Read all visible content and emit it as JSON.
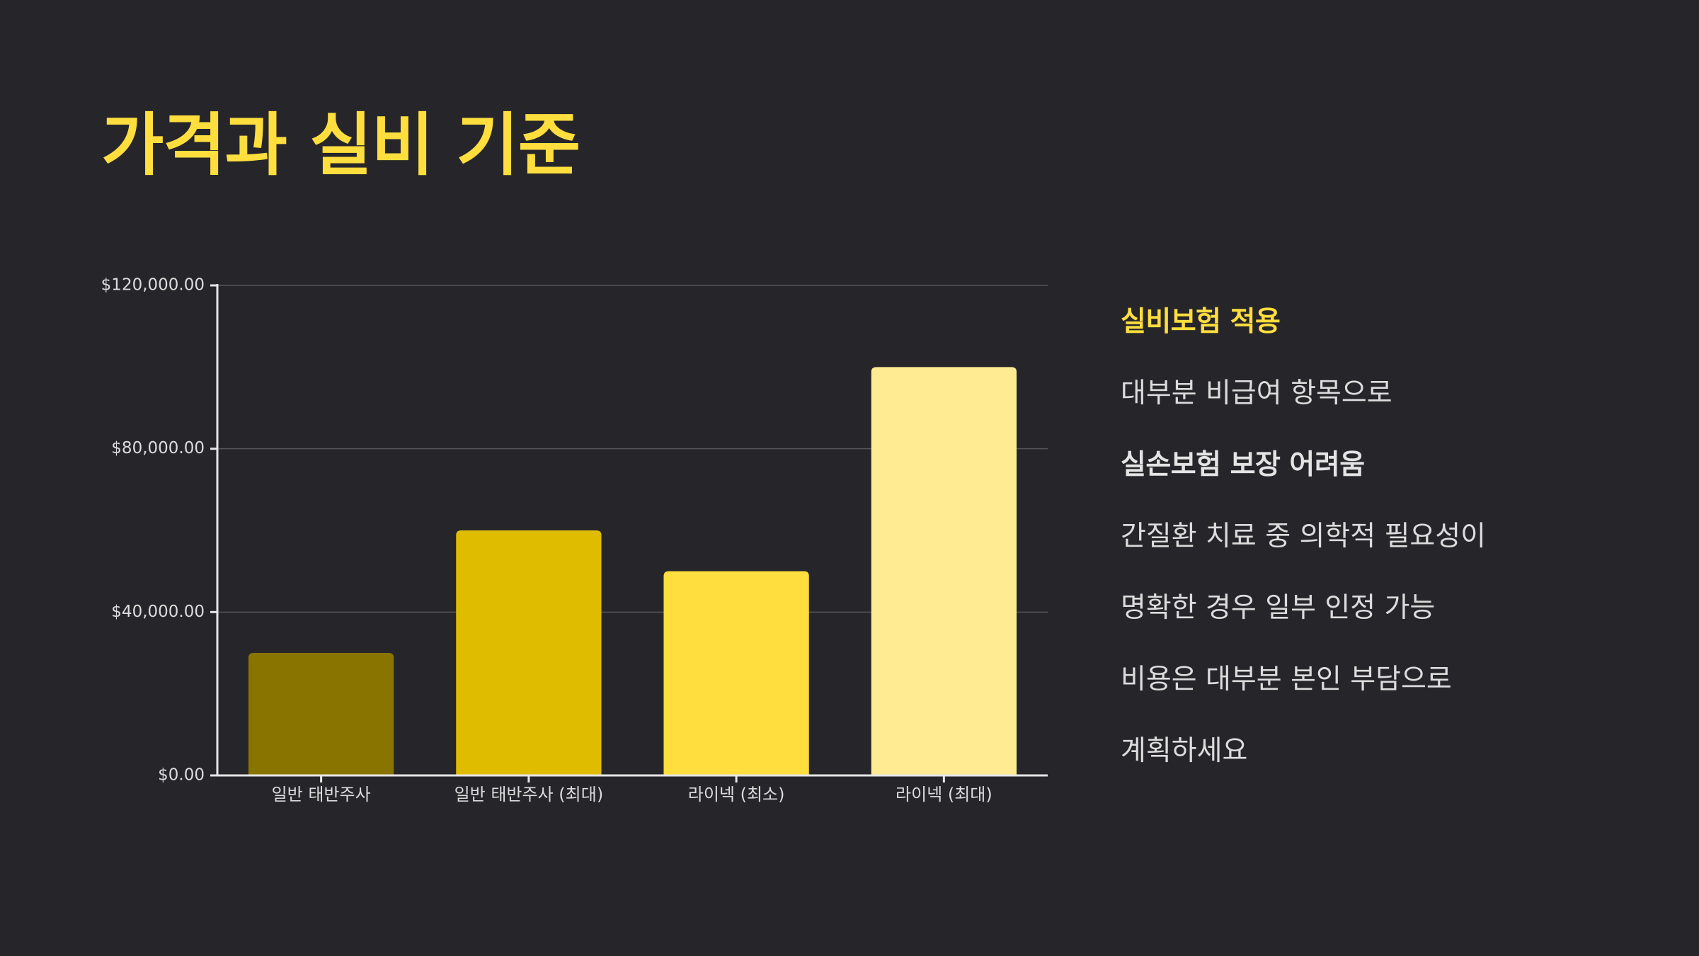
{
  "slide": {
    "title": "가격과 실비 기준"
  },
  "side_panel": {
    "lines": [
      {
        "text": "실비보험 적용",
        "style": "heading"
      },
      {
        "text": "대부분 비급여 항목으로",
        "style": "normal"
      },
      {
        "text": "실손보험 보장 어려움",
        "style": "strong"
      },
      {
        "text": "간질환 치료 중 의학적 필요성이",
        "style": "normal"
      },
      {
        "text": "명확한 경우 일부 인정 가능",
        "style": "normal"
      },
      {
        "text": "비용은 대부분 본인 부담으로",
        "style": "normal"
      },
      {
        "text": "계획하세요",
        "style": "normal"
      }
    ]
  },
  "colors": {
    "background": "#26262a",
    "title": "#ffde3d",
    "heading": "#ffde3d",
    "strong": "#e4e4e4",
    "text": "#dcdcdc",
    "axis": "#e6e6e6",
    "grid": "#55555a",
    "tick_label": "#dcdcdc"
  },
  "chart_data": {
    "type": "bar",
    "categories": [
      "일반 태반주사",
      "일반 태반주사 (최대)",
      "라이넥 (최소)",
      "라이넥 (최대)"
    ],
    "values": [
      30000,
      60000,
      50000,
      100000
    ],
    "bar_colors": [
      "#8a7400",
      "#e0bc00",
      "#ffde3d",
      "#ffeb91"
    ],
    "ylim": [
      0,
      120000
    ],
    "yticks": [
      0,
      40000,
      80000,
      120000
    ],
    "ytick_labels": [
      "$0.00",
      "$40,000.00",
      "$80,000.00",
      "$120,000.00"
    ],
    "title": "",
    "xlabel": "",
    "ylabel": "",
    "grid": true,
    "legend": "none"
  }
}
